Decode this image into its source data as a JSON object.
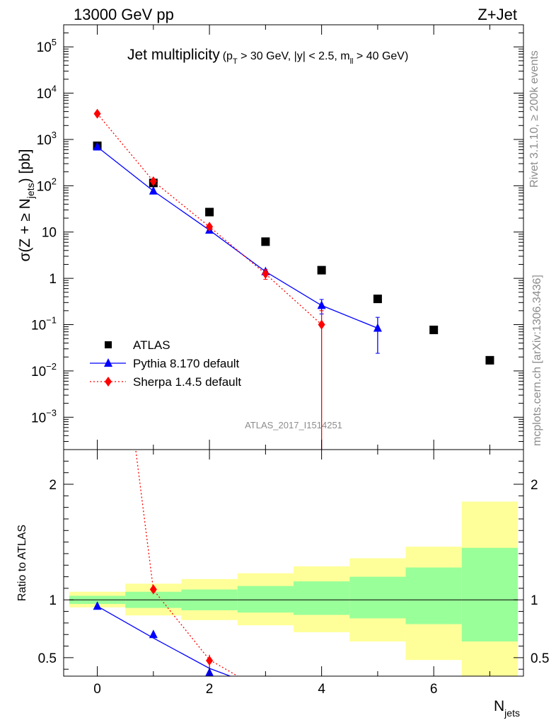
{
  "header": {
    "left": "13000 GeV pp",
    "right": "Z+Jet"
  },
  "side_labels": {
    "rivet": "Rivet 3.1.10, ≥ 200k events",
    "mcplots": "mcplots.cern.ch [arXiv:1306.3436]"
  },
  "chart_data": [
    {
      "type": "scatter",
      "title": "Jet multiplicity",
      "title_cuts": {
        "open": "(p",
        "pt_sub": "T",
        "mid": " > 30 GeV, |y| < 2.5, m",
        "mll_sub": "ll",
        "close": " > 40 GeV)"
      },
      "ylabel": {
        "main": "σ(Z + ≥ N",
        "sub": "jets",
        "close": ") [pb]"
      },
      "analysis_tag": "ATLAS_2017_I1514251",
      "y_scale": "log",
      "ylim": [
        0.0002,
        300000
      ],
      "xlim": [
        -0.6,
        7.6
      ],
      "y_tick_labels": [
        {
          "value": 100000,
          "base": "10",
          "exp": "5"
        },
        {
          "value": 10000,
          "base": "10",
          "exp": "4"
        },
        {
          "value": 1000,
          "base": "10",
          "exp": "3"
        },
        {
          "value": 100,
          "base": "10",
          "exp": "2"
        },
        {
          "value": 10,
          "base": "10",
          "exp": ""
        },
        {
          "value": 1,
          "base": "1",
          "exp": ""
        },
        {
          "value": 0.1,
          "base": "10",
          "exp": "−1"
        },
        {
          "value": 0.01,
          "base": "10",
          "exp": "−2"
        },
        {
          "value": 0.001,
          "base": "10",
          "exp": "−3"
        }
      ],
      "legend_position": "bottom-left",
      "series": [
        {
          "name": "ATLAS",
          "color": "#000000",
          "marker": "square",
          "x": [
            0,
            1,
            2,
            3,
            4,
            5,
            6,
            7
          ],
          "y": [
            730,
            115,
            27,
            6.2,
            1.5,
            0.36,
            0.077,
            0.017
          ]
        },
        {
          "name": "Pythia 8.170 default",
          "color": "#0000ff",
          "marker": "triangle",
          "line": "solid",
          "x": [
            0,
            1,
            2,
            3,
            4,
            5
          ],
          "y": [
            690,
            77,
            11,
            1.4,
            0.26,
            0.084
          ],
          "err": [
            0,
            0,
            0,
            0,
            0.09,
            0.06
          ]
        },
        {
          "name": "Sherpa 1.4.5 default",
          "color": "#ff0000",
          "marker": "diamond",
          "line": "dotted",
          "x": [
            0,
            1,
            2,
            3,
            4
          ],
          "y": [
            3600,
            125,
            13,
            1.25,
            0.1
          ],
          "err": [
            0,
            0,
            0,
            0.3,
            0.1
          ]
        }
      ]
    },
    {
      "type": "scatter",
      "ylabel": "Ratio to ATLAS",
      "xlabel": {
        "main": "N",
        "sub": "jets"
      },
      "ylim": [
        0.34,
        2.3
      ],
      "xlim": [
        -0.6,
        7.6
      ],
      "x_ticks": [
        "0",
        "2",
        "4",
        "6"
      ],
      "y_ticks": [
        "2",
        "1",
        "0.5"
      ],
      "bands": {
        "bins": [
          [
            -0.5,
            0.5
          ],
          [
            0.5,
            1.5
          ],
          [
            1.5,
            2.5
          ],
          [
            2.5,
            3.5
          ],
          [
            3.5,
            4.5
          ],
          [
            4.5,
            5.5
          ],
          [
            5.5,
            6.5
          ],
          [
            6.5,
            7.5
          ]
        ],
        "yellow": [
          [
            0.935,
            1.07
          ],
          [
            0.865,
            1.14
          ],
          [
            0.825,
            1.18
          ],
          [
            0.78,
            1.23
          ],
          [
            0.72,
            1.29
          ],
          [
            0.64,
            1.36
          ],
          [
            0.48,
            1.46
          ],
          [
            0.34,
            1.85
          ]
        ],
        "green": [
          [
            0.965,
            1.035
          ],
          [
            0.93,
            1.07
          ],
          [
            0.91,
            1.09
          ],
          [
            0.89,
            1.12
          ],
          [
            0.87,
            1.16
          ],
          [
            0.84,
            1.2
          ],
          [
            0.79,
            1.28
          ],
          [
            0.64,
            1.45
          ]
        ],
        "yellow_color": "#ffff99",
        "green_color": "#99ff99"
      },
      "series": [
        {
          "name": "Pythia 8.170 default",
          "color": "#0000ff",
          "marker": "triangle",
          "x": [
            0,
            1,
            2
          ],
          "y": [
            0.945,
            0.7,
            0.37
          ]
        },
        {
          "name": "Sherpa 1.4.5 default",
          "color": "#ff0000",
          "marker": "diamond",
          "x": [
            1,
            2
          ],
          "y": [
            1.09,
            0.475
          ],
          "err": [
            0,
            0.05
          ]
        }
      ]
    }
  ]
}
